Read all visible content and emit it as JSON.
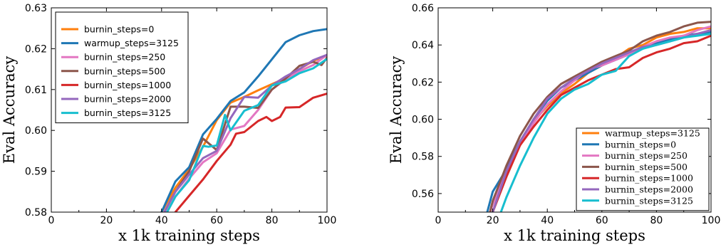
{
  "colors": {
    "orange": "#ff7f0e",
    "blue": "#1f77b4",
    "pink": "#e377c2",
    "brown": "#8c564b",
    "red": "#d62728",
    "purple": "#9467bd",
    "cyan": "#17becf"
  },
  "chart_data": [
    {
      "type": "line",
      "xlabel": "x 1k training steps",
      "ylabel": "Eval Accuracy",
      "xlim": [
        0,
        100
      ],
      "ylim": [
        0.58,
        0.63
      ],
      "xticks": [
        "0",
        "20",
        "40",
        "60",
        "80",
        "100"
      ],
      "yticks": [
        "0.58",
        "0.59",
        "0.60",
        "0.61",
        "0.62",
        "0.63"
      ],
      "legend_position": "top-left",
      "grid": false,
      "series": [
        {
          "name": "burnin_steps=0",
          "color": "#ff7f0e",
          "x": [
            40,
            45,
            50,
            55,
            60,
            65,
            70,
            75,
            80,
            85,
            90,
            95,
            100
          ],
          "y": [
            0.58,
            0.586,
            0.5905,
            0.596,
            0.6025,
            0.6068,
            0.6082,
            0.6098,
            0.6113,
            0.6128,
            0.615,
            0.617,
            0.6183
          ]
        },
        {
          "name": "warmup_steps=3125",
          "color": "#1f77b4",
          "x": [
            40,
            45,
            50,
            55,
            60,
            65,
            70,
            75,
            80,
            85,
            90,
            95,
            100
          ],
          "y": [
            0.58,
            0.5875,
            0.591,
            0.599,
            0.6028,
            0.6072,
            0.6093,
            0.6132,
            0.6174,
            0.6216,
            0.6233,
            0.6243,
            0.6248
          ]
        },
        {
          "name": "burnin_steps=250",
          "color": "#e377c2",
          "x": [
            42,
            45,
            50,
            55,
            60,
            65,
            70,
            75,
            80,
            85,
            90,
            95,
            100
          ],
          "y": [
            0.58,
            0.5838,
            0.5882,
            0.5922,
            0.5944,
            0.6002,
            0.6011,
            0.605,
            0.61,
            0.6125,
            0.6145,
            0.616,
            0.6185
          ]
        },
        {
          "name": "burnin_steps=500",
          "color": "#8c564b",
          "x": [
            41,
            45,
            50,
            55,
            60,
            65,
            70,
            75,
            80,
            85,
            90,
            95,
            98,
            100
          ],
          "y": [
            0.58,
            0.585,
            0.59,
            0.598,
            0.5952,
            0.6058,
            0.6058,
            0.6055,
            0.61,
            0.6127,
            0.6158,
            0.6168,
            0.616,
            0.6178
          ]
        },
        {
          "name": "burnin_steps=1000",
          "color": "#d62728",
          "x": [
            45,
            50,
            55,
            60,
            65,
            67,
            70,
            75,
            78,
            80,
            83,
            85,
            90,
            95,
            100
          ],
          "y": [
            0.58,
            0.584,
            0.588,
            0.5925,
            0.5965,
            0.5992,
            0.5996,
            0.6023,
            0.6033,
            0.6023,
            0.6033,
            0.6056,
            0.6057,
            0.608,
            0.609
          ]
        },
        {
          "name": "burnin_steps=2000",
          "color": "#9467bd",
          "x": [
            41,
            45,
            50,
            55,
            60,
            65,
            70,
            75,
            80,
            85,
            90,
            95,
            100
          ],
          "y": [
            0.58,
            0.585,
            0.5892,
            0.5932,
            0.595,
            0.603,
            0.6082,
            0.608,
            0.611,
            0.6132,
            0.615,
            0.6172,
            0.6185
          ]
        },
        {
          "name": "burnin_steps=3125",
          "color": "#17becf",
          "x": [
            42,
            45,
            50,
            55,
            57,
            60,
            63,
            65,
            70,
            75,
            80,
            85,
            90,
            95,
            100
          ],
          "y": [
            0.58,
            0.5838,
            0.5878,
            0.5962,
            0.596,
            0.5963,
            0.6038,
            0.6,
            0.6048,
            0.6062,
            0.611,
            0.612,
            0.614,
            0.6152,
            0.6175
          ]
        }
      ]
    },
    {
      "type": "line",
      "xlabel": "x 1k training steps",
      "ylabel": "Eval Accuracy",
      "xlim": [
        0,
        100
      ],
      "ylim": [
        0.55,
        0.66
      ],
      "xticks": [
        "0",
        "20",
        "40",
        "60",
        "80",
        "100"
      ],
      "yticks": [
        "0.56",
        "0.58",
        "0.60",
        "0.62",
        "0.64",
        "0.66"
      ],
      "legend_position": "bottom-right",
      "grid": false,
      "series": [
        {
          "name": "warmup_steps=3125",
          "color": "#ff7f0e",
          "x": [
            19,
            20,
            25,
            30,
            35,
            40,
            45,
            50,
            55,
            60,
            65,
            70,
            75,
            80,
            85,
            90,
            95,
            100
          ],
          "y": [
            0.55,
            0.555,
            0.57,
            0.588,
            0.599,
            0.607,
            0.614,
            0.619,
            0.625,
            0.629,
            0.633,
            0.638,
            0.64,
            0.644,
            0.646,
            0.647,
            0.649,
            0.649
          ]
        },
        {
          "name": "burnin_steps=0",
          "color": "#1f77b4",
          "x": [
            18,
            20,
            25,
            30,
            35,
            40,
            45,
            50,
            55,
            60,
            65,
            70,
            75,
            80,
            85,
            90,
            95,
            100
          ],
          "y": [
            0.55,
            0.561,
            0.573,
            0.588,
            0.6,
            0.61,
            0.617,
            0.621,
            0.625,
            0.629,
            0.632,
            0.635,
            0.638,
            0.641,
            0.643,
            0.645,
            0.646,
            0.647
          ]
        },
        {
          "name": "burnin_steps=250",
          "color": "#e377c2",
          "x": [
            19,
            20,
            25,
            30,
            35,
            40,
            45,
            50,
            55,
            60,
            65,
            70,
            75,
            80,
            85,
            90,
            95,
            100
          ],
          "y": [
            0.55,
            0.554,
            0.572,
            0.586,
            0.598,
            0.608,
            0.615,
            0.621,
            0.627,
            0.629,
            0.632,
            0.635,
            0.639,
            0.642,
            0.644,
            0.645,
            0.648,
            0.65
          ]
        },
        {
          "name": "burnin_steps=500",
          "color": "#8c564b",
          "x": [
            19,
            20,
            25,
            30,
            35,
            40,
            45,
            50,
            55,
            60,
            65,
            70,
            75,
            80,
            85,
            90,
            95,
            100
          ],
          "y": [
            0.55,
            0.556,
            0.575,
            0.591,
            0.603,
            0.612,
            0.619,
            0.623,
            0.627,
            0.631,
            0.634,
            0.637,
            0.642,
            0.645,
            0.647,
            0.65,
            0.652,
            0.6525
          ]
        },
        {
          "name": "burnin_steps=1000",
          "color": "#d62728",
          "x": [
            20,
            25,
            30,
            35,
            40,
            45,
            50,
            55,
            60,
            65,
            70,
            75,
            80,
            85,
            90,
            95,
            100
          ],
          "y": [
            0.55,
            0.569,
            0.586,
            0.596,
            0.605,
            0.613,
            0.617,
            0.621,
            0.624,
            0.627,
            0.628,
            0.633,
            0.636,
            0.638,
            0.641,
            0.642,
            0.645
          ]
        },
        {
          "name": "burnin_steps=2000",
          "color": "#9467bd",
          "x": [
            20,
            25,
            30,
            35,
            40,
            45,
            50,
            55,
            60,
            65,
            70,
            75,
            80,
            85,
            90,
            95,
            100
          ],
          "y": [
            0.55,
            0.572,
            0.588,
            0.6,
            0.611,
            0.617,
            0.622,
            0.626,
            0.63,
            0.633,
            0.636,
            0.639,
            0.64,
            0.642,
            0.644,
            0.646,
            0.648
          ]
        },
        {
          "name": "burnin_steps=3125",
          "color": "#17becf",
          "x": [
            23,
            25,
            30,
            35,
            40,
            45,
            50,
            55,
            60,
            65,
            70,
            75,
            80,
            85,
            90,
            95,
            100
          ],
          "y": [
            0.55,
            0.558,
            0.575,
            0.59,
            0.603,
            0.611,
            0.616,
            0.619,
            0.624,
            0.626,
            0.634,
            0.638,
            0.64,
            0.642,
            0.644,
            0.645,
            0.646
          ]
        }
      ]
    }
  ]
}
